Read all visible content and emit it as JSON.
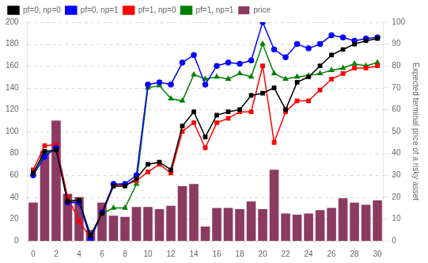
{
  "chart_data": {
    "type": "bar",
    "x": [
      0,
      1,
      2,
      3,
      4,
      5,
      6,
      7,
      8,
      9,
      10,
      11,
      12,
      13,
      14,
      15,
      16,
      17,
      18,
      19,
      20,
      21,
      22,
      23,
      24,
      25,
      26,
      27,
      28,
      29,
      30
    ],
    "series": [
      {
        "name": "price",
        "type": "bar",
        "color": "#8B3A62",
        "values": [
          35,
          82,
          110,
          43,
          40,
          10,
          35,
          23,
          22,
          31,
          31,
          29,
          32,
          50,
          52,
          13,
          30,
          30,
          29,
          36,
          29,
          65,
          25,
          24,
          25,
          28,
          30,
          39,
          35,
          33,
          37
        ]
      },
      {
        "name": "pf=0, np=0",
        "type": "line",
        "color": "#000000",
        "marker": "square",
        "line_style": "solid",
        "values": [
          62,
          82,
          83,
          36,
          37,
          5,
          25,
          50,
          50,
          57,
          70,
          72,
          65,
          105,
          118,
          95,
          115,
          118,
          120,
          133,
          135,
          140,
          120,
          145,
          150,
          160,
          170,
          175,
          180,
          183,
          185
        ]
      },
      {
        "name": "pf=0, np=1",
        "type": "line",
        "color": "#0000FF",
        "marker": "circle",
        "line_style": "solid",
        "values": [
          60,
          77,
          85,
          35,
          35,
          2,
          26,
          52,
          52,
          60,
          143,
          145,
          143,
          163,
          170,
          143,
          160,
          163,
          162,
          165,
          200,
          175,
          168,
          180,
          176,
          180,
          188,
          186,
          183,
          185,
          186
        ]
      },
      {
        "name": "pf=1, np=0",
        "type": "line",
        "color": "#FF0000",
        "marker": "square",
        "line_style": "solid",
        "values": [
          65,
          87,
          88,
          40,
          18,
          3,
          27,
          51,
          51,
          55,
          63,
          70,
          62,
          100,
          108,
          85,
          108,
          112,
          118,
          118,
          160,
          90,
          118,
          128,
          128,
          138,
          148,
          153,
          158,
          158,
          160
        ]
      },
      {
        "name": "pf=1, np=1",
        "type": "line",
        "color": "#008000",
        "marker": "triangle",
        "line_style": "solid",
        "values": [
          62,
          80,
          84,
          37,
          37,
          2,
          25,
          30,
          30,
          52,
          140,
          142,
          130,
          128,
          152,
          148,
          150,
          148,
          153,
          150,
          180,
          153,
          148,
          150,
          151,
          153,
          156,
          158,
          162,
          160,
          163
        ]
      }
    ],
    "xlim": [
      -0.5,
      30.5
    ],
    "xticks": [
      0,
      2,
      4,
      6,
      8,
      10,
      12,
      14,
      16,
      18,
      20,
      22,
      24,
      26,
      28,
      30
    ],
    "ylim": [
      0,
      200
    ],
    "yticks": [
      0,
      20,
      40,
      60,
      80,
      100,
      120,
      140,
      160,
      180,
      200
    ],
    "y2lim": [
      0,
      100
    ],
    "y2ticks": [
      0,
      10,
      20,
      30,
      40,
      50,
      60,
      70,
      80,
      90,
      100
    ],
    "y2label": "Expected terminal price of a risky asset",
    "grid": true,
    "legend": "upper left"
  }
}
